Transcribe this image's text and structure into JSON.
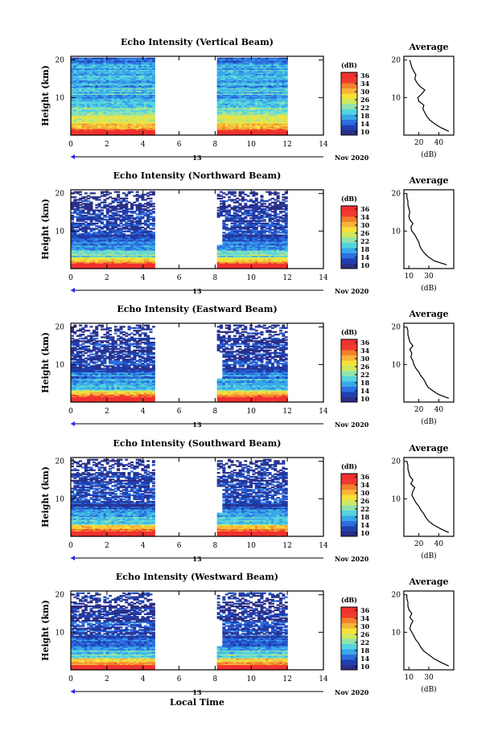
{
  "palette": [
    "#2b2f86",
    "#1f3fb0",
    "#2d6fe0",
    "#3aa7e8",
    "#55d3e0",
    "#8fe3b0",
    "#cfe860",
    "#f4e23a",
    "#f7b43a",
    "#f4802e",
    "#ee3b2f",
    "#f23030"
  ],
  "axes": {
    "ylabel": "Height (km)",
    "xlabel": "Local Time",
    "y_ticks": [
      "20",
      "10"
    ],
    "x_ticks": [
      "0",
      "2",
      "4",
      "6",
      "8",
      "10",
      "12",
      "14"
    ],
    "date_day": "13",
    "date_month_year": "Nov 2020"
  },
  "colorbar": {
    "unit": "(dB)",
    "ticks": [
      "36",
      "34",
      "30",
      "26",
      "22",
      "18",
      "14",
      "10"
    ]
  },
  "average": {
    "title": "Average",
    "xlabel": "(dB)",
    "y_ticks": [
      "20",
      "10"
    ]
  },
  "chart_data": [
    {
      "type": "heatmap",
      "title": "Echo Intensity (Vertical Beam)",
      "xlabel": "Local Time",
      "ylabel": "Height (km)",
      "xlim": [
        0,
        14
      ],
      "ylim": [
        0,
        21
      ],
      "clim": [
        10,
        38
      ],
      "data_gap_hours": [
        4.6,
        8.0
      ],
      "colorbar_label": "(dB)",
      "profile": {
        "title": "Average",
        "xlabel": "(dB)",
        "xlim": [
          5,
          55
        ],
        "x_ticks": [
          "20",
          "40"
        ],
        "height_km": [
          1,
          2,
          3,
          4,
          5,
          6,
          7,
          8,
          9,
          10,
          11,
          12,
          13,
          14,
          15,
          16,
          17,
          18,
          19,
          20
        ],
        "mean_db": [
          50,
          42,
          36,
          31,
          28,
          26,
          24,
          25,
          20,
          19,
          23,
          26,
          21,
          18,
          16,
          17,
          15,
          13,
          12,
          11
        ]
      }
    },
    {
      "type": "heatmap",
      "title": "Echo Intensity (Northward Beam)",
      "xlabel": "Local Time",
      "ylabel": "Height (km)",
      "xlim": [
        0,
        14
      ],
      "ylim": [
        0,
        21
      ],
      "clim": [
        10,
        38
      ],
      "data_gap_hours": [
        4.6,
        8.0
      ],
      "colorbar_label": "(dB)",
      "profile": {
        "title": "Average",
        "xlabel": "(dB)",
        "xlim": [
          5,
          55
        ],
        "x_ticks": [
          "10",
          "30"
        ],
        "height_km": [
          1,
          2,
          3,
          4,
          5,
          6,
          7,
          8,
          9,
          10,
          11,
          12,
          13,
          14,
          15,
          16,
          17,
          18,
          19,
          20
        ],
        "mean_db": [
          48,
          36,
          30,
          26,
          23,
          21,
          20,
          18,
          16,
          13,
          12,
          14,
          11,
          10,
          11,
          10,
          9,
          9,
          8,
          8
        ]
      }
    },
    {
      "type": "heatmap",
      "title": "Echo Intensity (Eastward Beam)",
      "xlabel": "Local Time",
      "ylabel": "Height (km)",
      "xlim": [
        0,
        14
      ],
      "ylim": [
        0,
        21
      ],
      "clim": [
        10,
        38
      ],
      "data_gap_hours": [
        4.6,
        8.0
      ],
      "colorbar_label": "(dB)",
      "profile": {
        "title": "Average",
        "xlabel": "(dB)",
        "xlim": [
          5,
          55
        ],
        "x_ticks": [
          "20",
          "40"
        ],
        "height_km": [
          1,
          2,
          3,
          4,
          5,
          6,
          7,
          8,
          9,
          10,
          11,
          12,
          13,
          14,
          15,
          16,
          17,
          18,
          19,
          20
        ],
        "mean_db": [
          50,
          40,
          34,
          29,
          27,
          25,
          22,
          20,
          17,
          15,
          14,
          12,
          13,
          11,
          14,
          11,
          10,
          9,
          9,
          8
        ]
      }
    },
    {
      "type": "heatmap",
      "title": "Echo Intensity (Southward Beam)",
      "xlabel": "Local Time",
      "ylabel": "Height (km)",
      "xlim": [
        0,
        14
      ],
      "ylim": [
        0,
        21
      ],
      "clim": [
        10,
        38
      ],
      "data_gap_hours": [
        4.6,
        8.0
      ],
      "colorbar_label": "(dB)",
      "profile": {
        "title": "Average",
        "xlabel": "(dB)",
        "xlim": [
          5,
          55
        ],
        "x_ticks": [
          "20",
          "40"
        ],
        "height_km": [
          1,
          2,
          3,
          4,
          5,
          6,
          7,
          8,
          9,
          10,
          11,
          12,
          13,
          14,
          15,
          16,
          17,
          18,
          19,
          20
        ],
        "mean_db": [
          50,
          42,
          35,
          30,
          27,
          25,
          22,
          20,
          17,
          15,
          13,
          14,
          16,
          12,
          14,
          11,
          10,
          9,
          9,
          8
        ]
      }
    },
    {
      "type": "heatmap",
      "title": "Echo Intensity (Westward Beam)",
      "xlabel": "Local Time",
      "ylabel": "Height (km)",
      "xlim": [
        0,
        14
      ],
      "ylim": [
        0,
        21
      ],
      "clim": [
        10,
        38
      ],
      "data_gap_hours": [
        4.6,
        8.0
      ],
      "colorbar_label": "(dB)",
      "profile": {
        "title": "Average",
        "xlabel": "(dB)",
        "xlim": [
          5,
          55
        ],
        "x_ticks": [
          "10",
          "30"
        ],
        "height_km": [
          1,
          2,
          3,
          4,
          5,
          6,
          7,
          8,
          9,
          10,
          11,
          12,
          13,
          14,
          15,
          16,
          17,
          18,
          19,
          20
        ],
        "mean_db": [
          50,
          42,
          35,
          30,
          25,
          22,
          20,
          17,
          15,
          13,
          11,
          12,
          14,
          11,
          13,
          10,
          9,
          9,
          8,
          8
        ]
      }
    }
  ]
}
